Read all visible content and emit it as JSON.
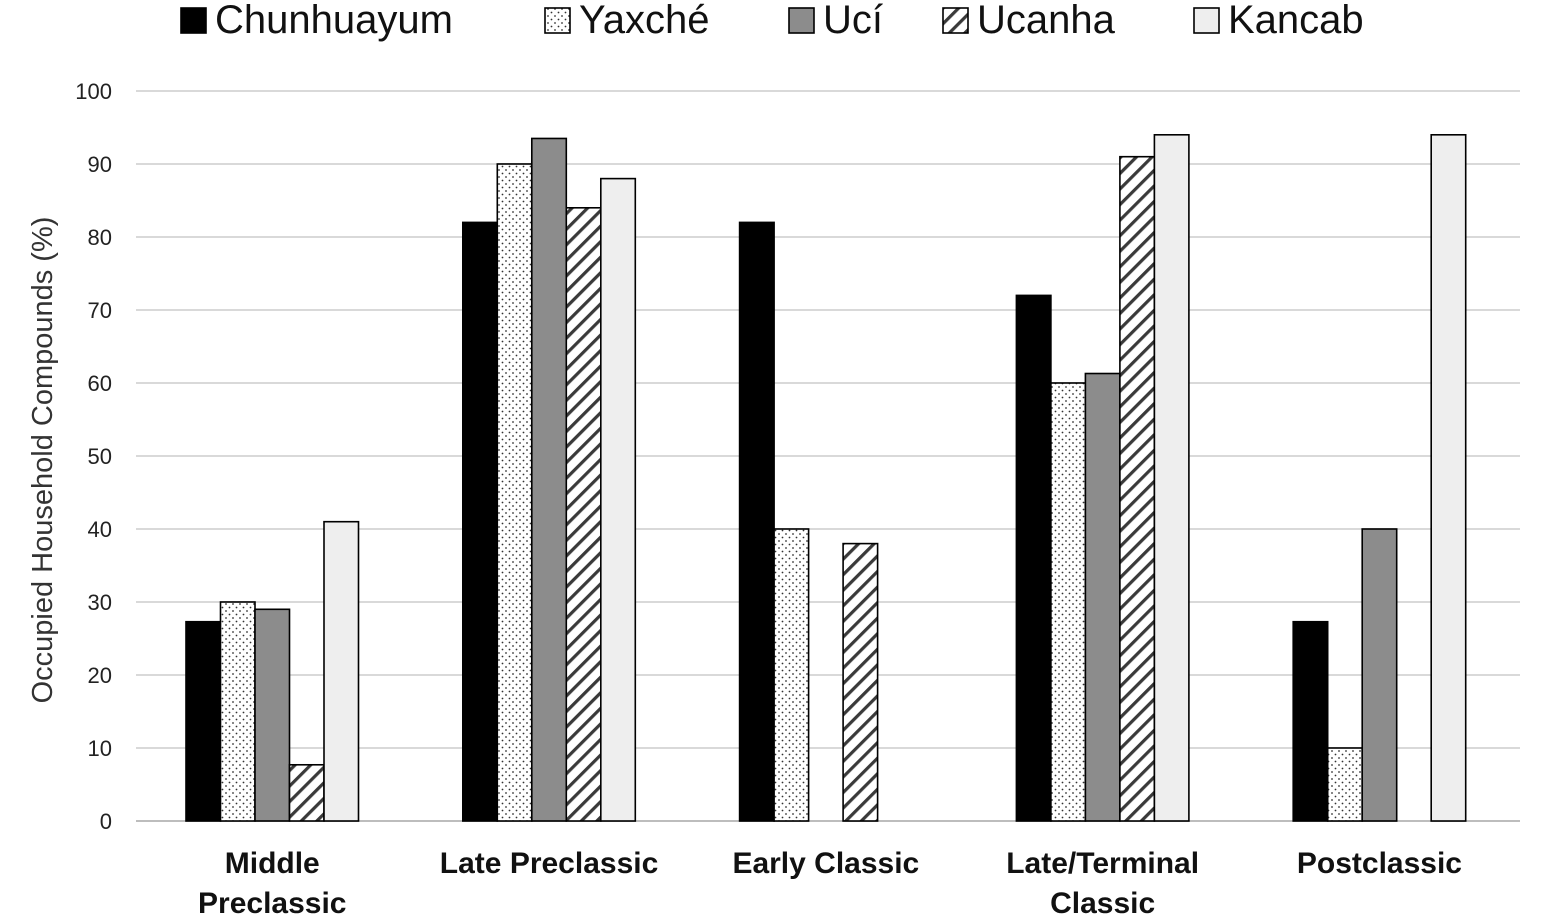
{
  "chart_data": {
    "type": "bar",
    "title": "",
    "xlabel": "",
    "ylabel": "Occupied Household Compounds (%)",
    "ylim": [
      0,
      100
    ],
    "yticks": [
      0,
      10,
      20,
      30,
      40,
      50,
      60,
      70,
      80,
      90,
      100
    ],
    "grid": true,
    "legend_position": "top",
    "categories": [
      [
        "Middle",
        "Preclassic"
      ],
      [
        "Late Preclassic"
      ],
      [
        "Early Classic"
      ],
      [
        "Late/Terminal",
        "Classic"
      ],
      [
        "Postclassic"
      ]
    ],
    "series": [
      {
        "name": "Chunhuayum",
        "pattern": "solid-black",
        "color": "#000000",
        "values": [
          27.3,
          82,
          82,
          72,
          27.3
        ]
      },
      {
        "name": "Yaxché",
        "pattern": "dots",
        "color": "#ffffff",
        "values": [
          30,
          90,
          40,
          60,
          10
        ]
      },
      {
        "name": "Ucí",
        "pattern": "solid-gray",
        "color": "#8c8c8c",
        "values": [
          29,
          93.5,
          null,
          61.3,
          40
        ]
      },
      {
        "name": "Ucanha",
        "pattern": "diagonal-hatch",
        "color": "#ffffff",
        "values": [
          7.7,
          84,
          38,
          91,
          null
        ]
      },
      {
        "name": "Kancab",
        "pattern": "solid-light",
        "color": "#eeeeee",
        "values": [
          41,
          88,
          null,
          94,
          94
        ]
      }
    ]
  }
}
